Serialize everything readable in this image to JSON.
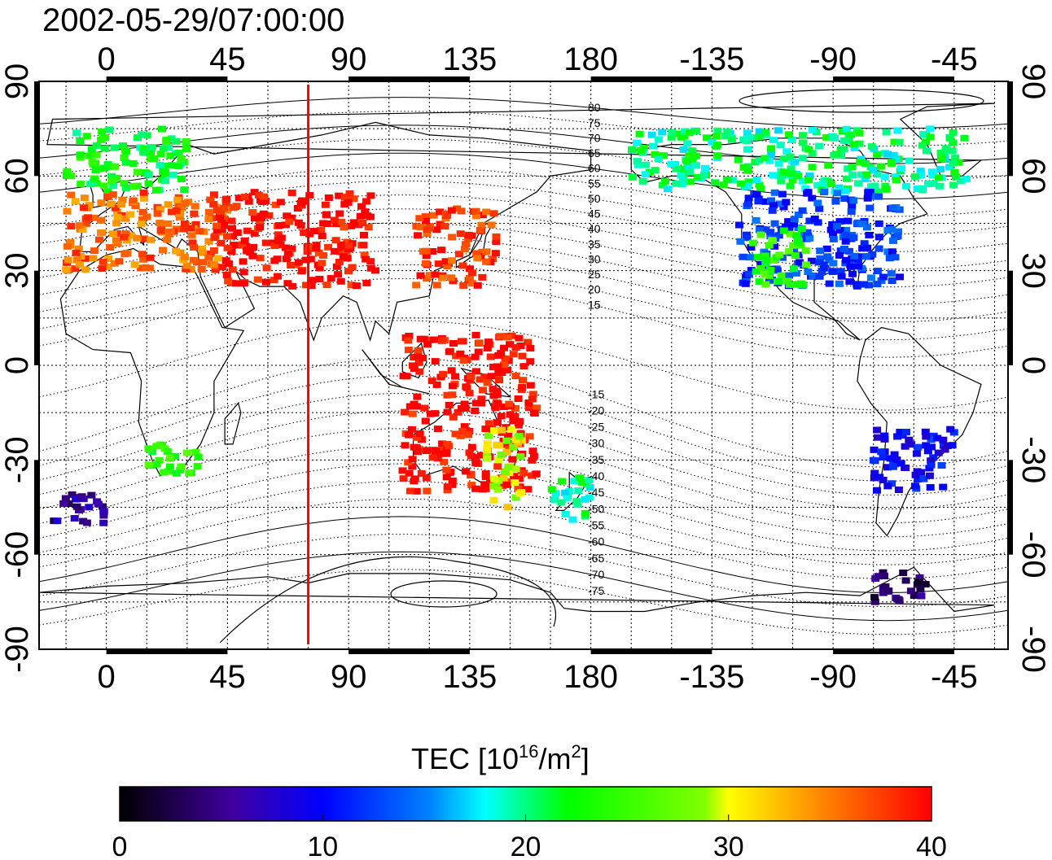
{
  "title": "2002-05-29/07:00:00",
  "map": {
    "lon_ticks_top": [
      "0",
      "45",
      "90",
      "135",
      "180",
      "-135",
      "-90",
      "-45"
    ],
    "lon_ticks_bottom": [
      "0",
      "45",
      "90",
      "135",
      "180",
      "-135",
      "-90",
      "-45"
    ],
    "lat_ticks_left": [
      "90",
      "60",
      "30",
      "0",
      "-30",
      "-60",
      "-90"
    ],
    "lat_ticks_right": [
      "90",
      "60",
      "30",
      "0",
      "-30",
      "-60",
      "-90"
    ],
    "lon_range": [
      -25,
      335
    ],
    "lat_range": [
      -90,
      90
    ],
    "grid": true,
    "magnetic_latitude_labels": [
      "80",
      "75",
      "70",
      "65",
      "60",
      "55",
      "50",
      "45",
      "40",
      "35",
      "30",
      "25",
      "20",
      "15",
      "-15",
      "-20",
      "-25",
      "-30",
      "-35",
      "-40",
      "-45",
      "-50",
      "-55",
      "-60",
      "-65",
      "-70",
      "-75"
    ],
    "reference_meridian_lon": 75,
    "reference_line_color": "#ff0000"
  },
  "colorbar": {
    "label_prefix": "TEC  [10",
    "label_exp1": "16",
    "label_mid": "/m",
    "label_exp2": "2",
    "label_suffix": "]",
    "ticks": [
      "0",
      "10",
      "20",
      "30",
      "40"
    ],
    "range": [
      0,
      40
    ],
    "colormap": [
      "#000000",
      "#4000a0",
      "#0000ff",
      "#00ffff",
      "#00ff00",
      "#ffff00",
      "#ff8000",
      "#ff0000"
    ]
  },
  "chart_data": {
    "type": "heatmap",
    "title": "2002-05-29/07:00:00",
    "value_label": "TEC [10^16/m^2]",
    "value_range": [
      0,
      40
    ],
    "regions": [
      {
        "lon": [
          -15,
          30
        ],
        "lat": [
          55,
          75
        ],
        "tec": 22
      },
      {
        "lon": [
          -15,
          45
        ],
        "lat": [
          30,
          55
        ],
        "tec": 36
      },
      {
        "lon": [
          40,
          100
        ],
        "lat": [
          25,
          55
        ],
        "tec": 40
      },
      {
        "lon": [
          115,
          145
        ],
        "lat": [
          25,
          50
        ],
        "tec": 38
      },
      {
        "lon": [
          110,
          160
        ],
        "lat": [
          -40,
          10
        ],
        "tec": 40
      },
      {
        "lon": [
          140,
          155
        ],
        "lat": [
          -45,
          -20
        ],
        "tec": 30
      },
      {
        "lon": [
          165,
          180
        ],
        "lat": [
          -50,
          -35
        ],
        "tec": 20
      },
      {
        "lon": [
          -165,
          -40
        ],
        "lat": [
          55,
          75
        ],
        "tec": 20
      },
      {
        "lon": [
          -125,
          -65
        ],
        "lat": [
          25,
          55
        ],
        "tec": 12
      },
      {
        "lon": [
          -120,
          -100
        ],
        "lat": [
          25,
          45
        ],
        "tec": 24
      },
      {
        "lon": [
          -75,
          -45
        ],
        "lat": [
          -40,
          -20
        ],
        "tec": 10
      },
      {
        "lon": [
          -75,
          -55
        ],
        "lat": [
          -75,
          -65
        ],
        "tec": 4
      },
      {
        "lon": [
          15,
          35
        ],
        "lat": [
          -35,
          -25
        ],
        "tec": 24
      },
      {
        "lon": [
          -20,
          0
        ],
        "lat": [
          -50,
          -40
        ],
        "tec": 5
      }
    ]
  }
}
